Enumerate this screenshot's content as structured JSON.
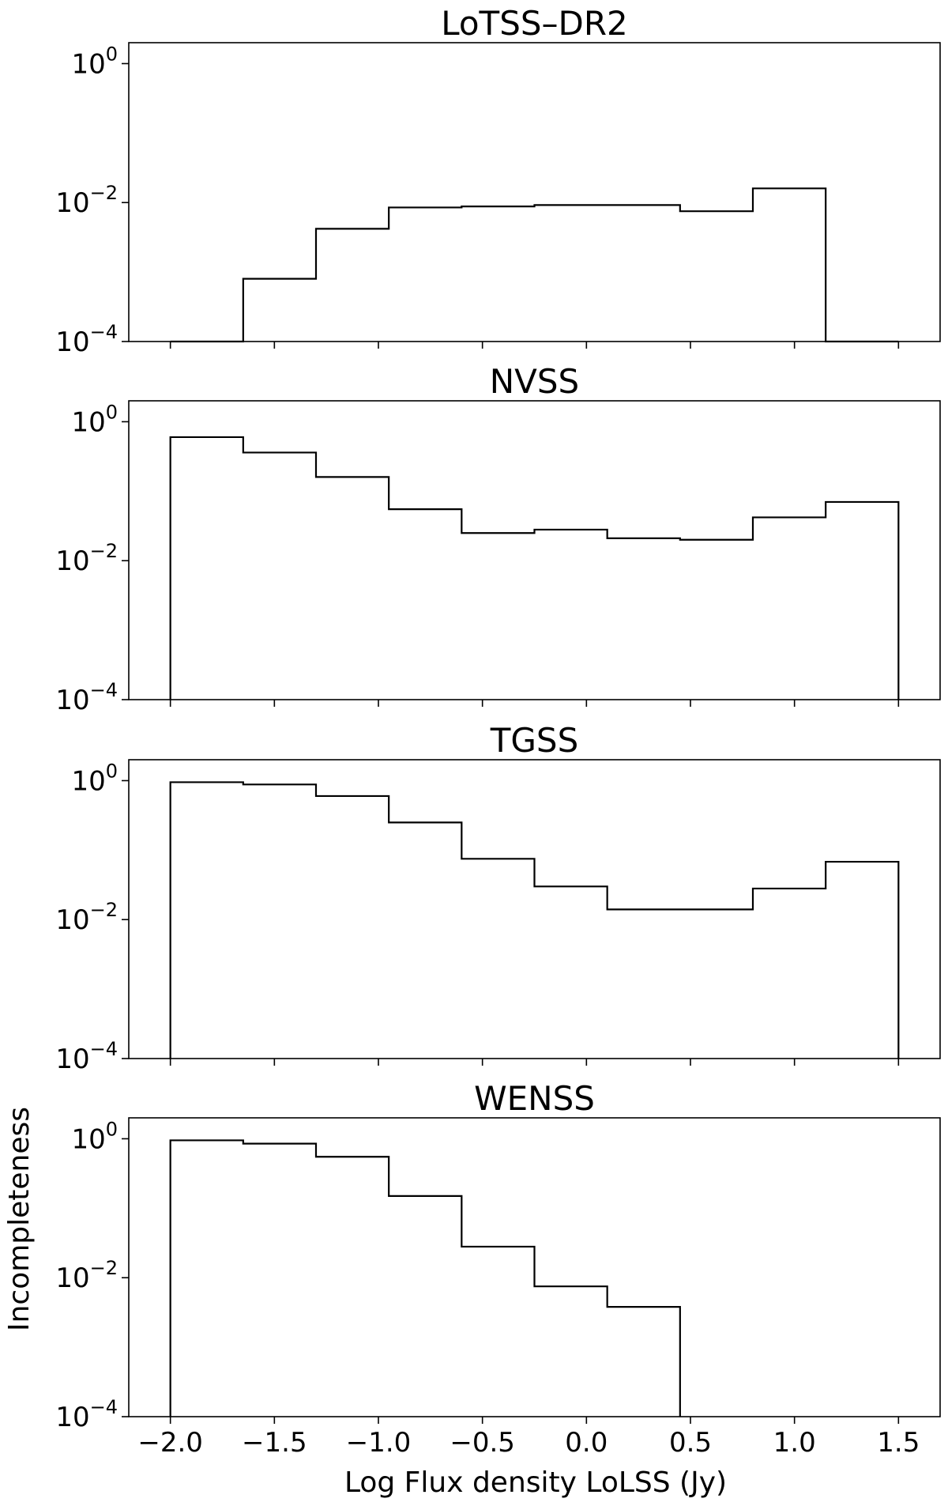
{
  "figure": {
    "xlabel": "Log Flux density LoLSS (Jy)",
    "ylabel": "Incompleteness"
  },
  "chart_data": [
    {
      "type": "histogram-step",
      "title": "LoTSS–DR2",
      "yscale": "log",
      "ylim": [
        0.0001,
        2
      ],
      "xlim": [
        -2.2,
        1.7
      ],
      "xticks": [
        -2.0,
        -1.5,
        -1.0,
        -0.5,
        0.0,
        0.5,
        1.0,
        1.5
      ],
      "yticks": [
        {
          "base": "10",
          "exp": "0",
          "value": 1
        },
        {
          "base": "10",
          "exp": "−2",
          "value": 0.01
        },
        {
          "base": "10",
          "exp": "−4",
          "value": 0.0001
        }
      ],
      "bin_edges": [
        -2.0,
        -1.65,
        -1.3,
        -0.95,
        -0.6,
        -0.25,
        0.1,
        0.45,
        0.8,
        1.15,
        1.5
      ],
      "values": [
        0,
        0.0008,
        0.0042,
        0.0085,
        0.0088,
        0.0092,
        0.0092,
        0.0075,
        0.016,
        0
      ]
    },
    {
      "type": "histogram-step",
      "title": "NVSS",
      "yscale": "log",
      "ylim": [
        0.0001,
        2
      ],
      "xlim": [
        -2.2,
        1.7
      ],
      "xticks": [
        -2.0,
        -1.5,
        -1.0,
        -0.5,
        0.0,
        0.5,
        1.0,
        1.5
      ],
      "yticks": [
        {
          "base": "10",
          "exp": "0",
          "value": 1
        },
        {
          "base": "10",
          "exp": "−2",
          "value": 0.01
        },
        {
          "base": "10",
          "exp": "−4",
          "value": 0.0001
        }
      ],
      "bin_edges": [
        -2.0,
        -1.65,
        -1.3,
        -0.95,
        -0.6,
        -0.25,
        0.1,
        0.45,
        0.8,
        1.15,
        1.5
      ],
      "values": [
        0.6,
        0.36,
        0.16,
        0.055,
        0.025,
        0.028,
        0.021,
        0.02,
        0.042,
        0.07
      ]
    },
    {
      "type": "histogram-step",
      "title": "TGSS",
      "yscale": "log",
      "ylim": [
        0.0001,
        2
      ],
      "xlim": [
        -2.2,
        1.7
      ],
      "xticks": [
        -2.0,
        -1.5,
        -1.0,
        -0.5,
        0.0,
        0.5,
        1.0,
        1.5
      ],
      "yticks": [
        {
          "base": "10",
          "exp": "0",
          "value": 1
        },
        {
          "base": "10",
          "exp": "−2",
          "value": 0.01
        },
        {
          "base": "10",
          "exp": "−4",
          "value": 0.0001
        }
      ],
      "bin_edges": [
        -2.0,
        -1.65,
        -1.3,
        -0.95,
        -0.6,
        -0.25,
        0.1,
        0.45,
        0.8,
        1.15,
        1.5
      ],
      "values": [
        0.95,
        0.88,
        0.6,
        0.25,
        0.075,
        0.03,
        0.014,
        0.014,
        0.028,
        0.068
      ]
    },
    {
      "type": "histogram-step",
      "title": "WENSS",
      "yscale": "log",
      "ylim": [
        0.0001,
        2
      ],
      "xlim": [
        -2.2,
        1.7
      ],
      "xticks": [
        -2.0,
        -1.5,
        -1.0,
        -0.5,
        0.0,
        0.5,
        1.0,
        1.5
      ],
      "yticks": [
        {
          "base": "10",
          "exp": "0",
          "value": 1
        },
        {
          "base": "10",
          "exp": "−2",
          "value": 0.01
        },
        {
          "base": "10",
          "exp": "−4",
          "value": 0.0001
        }
      ],
      "bin_edges": [
        -2.0,
        -1.65,
        -1.3,
        -0.95,
        -0.6,
        -0.25,
        0.1,
        0.45
      ],
      "values": [
        0.95,
        0.85,
        0.55,
        0.15,
        0.028,
        0.0075,
        0.0038
      ]
    }
  ]
}
